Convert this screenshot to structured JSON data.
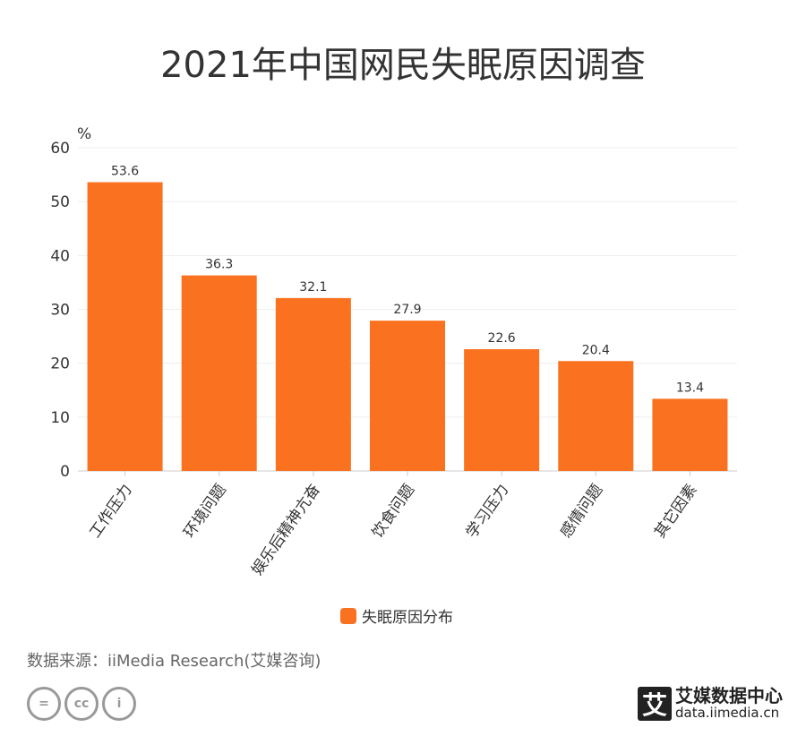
{
  "title": "2021年中国网民失眠原因调查",
  "chart_data": {
    "type": "bar",
    "title": "2021年中国网民失眠原因调查",
    "ylabel": "%",
    "xlabel": "",
    "ylim": [
      0,
      60
    ],
    "yticks": [
      0,
      10,
      20,
      30,
      40,
      50,
      60
    ],
    "grid": true,
    "legend_position": "bottom",
    "categories": [
      "工作压力",
      "环境问题",
      "娱乐后精神亢奋",
      "饮食问题",
      "学习压力",
      "感情问题",
      "其它因素"
    ],
    "series": [
      {
        "name": "失眠原因分布",
        "values": [
          53.6,
          36.3,
          32.1,
          27.9,
          22.6,
          20.4,
          13.4
        ],
        "color": "#FA7120"
      }
    ]
  },
  "footer": {
    "source": "数据来源：iiMedia Research(艾媒咨询)",
    "logo_name": "艾媒数据中心",
    "logo_url": "data.iimedia.cn",
    "license_icons": [
      "nd-icon",
      "cc-icon",
      "by-icon"
    ]
  }
}
